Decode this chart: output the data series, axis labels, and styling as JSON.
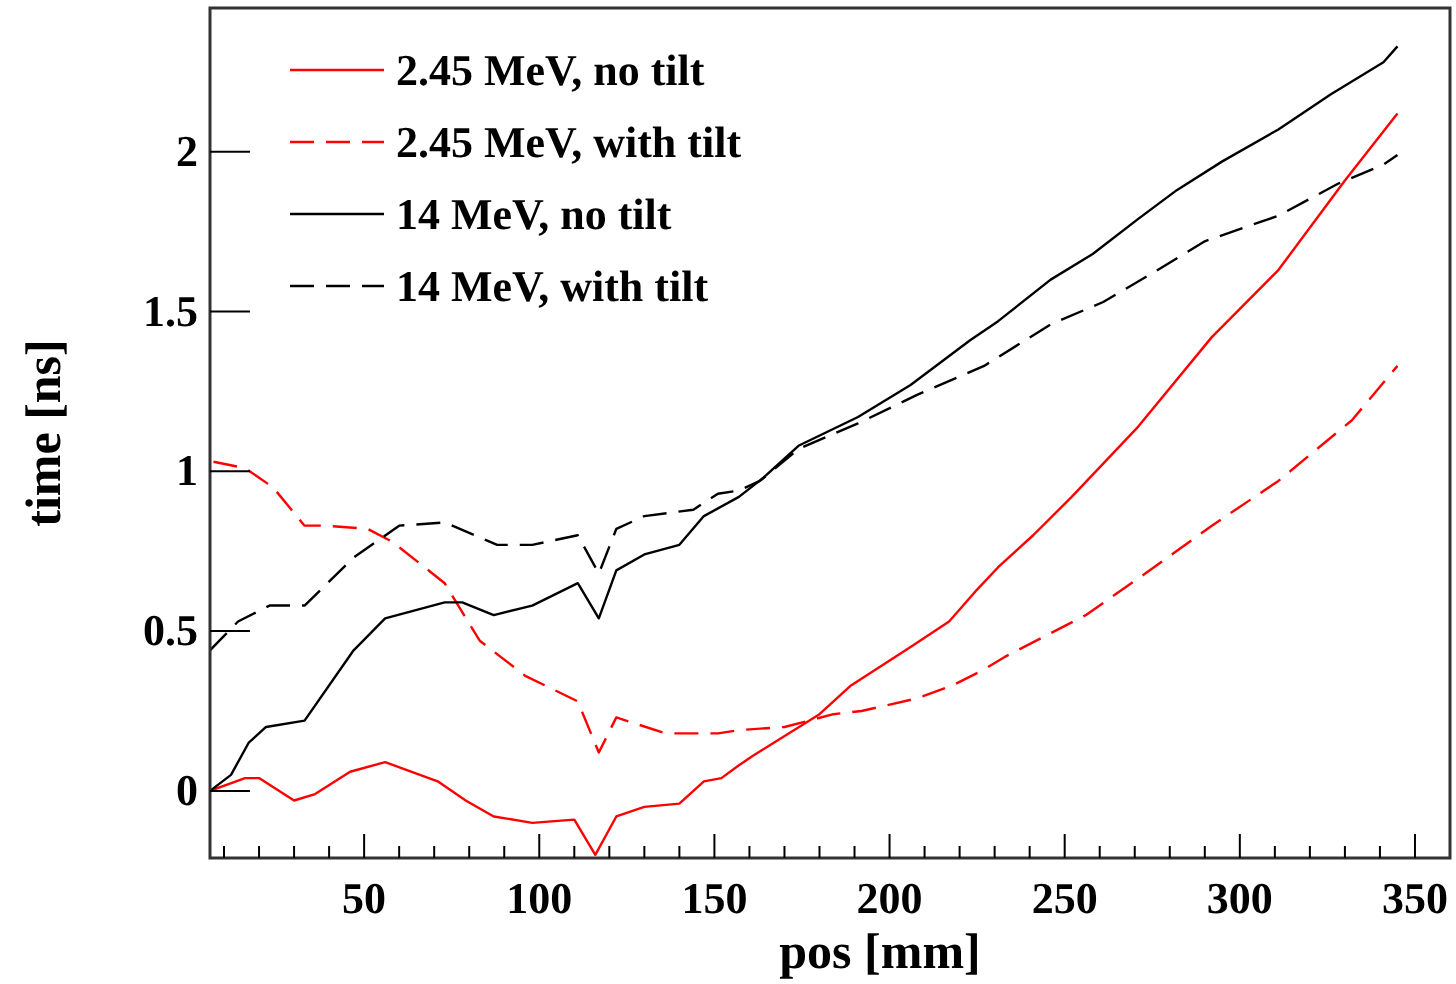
{
  "chart_data": {
    "type": "line",
    "xlabel": "pos [mm]",
    "ylabel": "time [ns]",
    "xlim": [
      6,
      360
    ],
    "ylim": [
      -0.21,
      2.45
    ],
    "xticks": [
      {
        "value": 10,
        "label": null
      },
      {
        "value": 20,
        "label": null
      },
      {
        "value": 30,
        "label": null
      },
      {
        "value": 40,
        "label": null
      },
      50,
      {
        "value": 60,
        "label": null
      },
      {
        "value": 70,
        "label": null
      },
      {
        "value": 80,
        "label": null
      },
      {
        "value": 90,
        "label": null
      },
      100,
      {
        "value": 110,
        "label": null
      },
      {
        "value": 120,
        "label": null
      },
      {
        "value": 130,
        "label": null
      },
      {
        "value": 140,
        "label": null
      },
      150,
      {
        "value": 160,
        "label": null
      },
      {
        "value": 170,
        "label": null
      },
      {
        "value": 180,
        "label": null
      },
      {
        "value": 190,
        "label": null
      },
      200,
      {
        "value": 210,
        "label": null
      },
      {
        "value": 220,
        "label": null
      },
      {
        "value": 230,
        "label": null
      },
      {
        "value": 240,
        "label": null
      },
      250,
      {
        "value": 260,
        "label": null
      },
      {
        "value": 270,
        "label": null
      },
      {
        "value": 280,
        "label": null
      },
      {
        "value": 290,
        "label": null
      },
      300,
      {
        "value": 310,
        "label": null
      },
      {
        "value": 320,
        "label": null
      },
      {
        "value": 330,
        "label": null
      },
      {
        "value": 340,
        "label": null
      },
      350
    ],
    "yticks": [
      0,
      0.5,
      1,
      1.5,
      2
    ],
    "grid": false,
    "legend": "top left",
    "marker": "none",
    "series": [
      {
        "name": "2.45 MeV, no tilt",
        "color": "#ff0000",
        "line_style": "solid",
        "x": [
          6,
          16,
          20,
          30,
          36,
          46,
          56,
          71,
          79,
          87,
          98,
          110,
          116,
          122,
          130,
          140,
          147,
          152,
          157,
          161,
          180,
          189,
          206,
          217,
          225,
          231,
          241,
          252,
          271,
          292,
          311,
          330,
          345
        ],
        "values": [
          0,
          0.04,
          0.04,
          -0.03,
          -0.01,
          0.06,
          0.09,
          0.03,
          -0.03,
          -0.08,
          -0.1,
          -0.09,
          -0.2,
          -0.08,
          -0.05,
          -0.04,
          0.03,
          0.04,
          0.08,
          0.11,
          0.24,
          0.33,
          0.45,
          0.53,
          0.63,
          0.7,
          0.8,
          0.92,
          1.14,
          1.42,
          1.63,
          1.91,
          2.12
        ]
      },
      {
        "name": "2.45 MeV, with tilt",
        "color": "#ff0000",
        "line_style": "dashed",
        "x": [
          7,
          16,
          24,
          33,
          39,
          51,
          58,
          73,
          83,
          96,
          111,
          117,
          122,
          136,
          144,
          151,
          157,
          170,
          184,
          192,
          208,
          218,
          227,
          233,
          256,
          273,
          292,
          311,
          332,
          345
        ],
        "values": [
          1.03,
          1.01,
          0.95,
          0.83,
          0.83,
          0.82,
          0.78,
          0.65,
          0.47,
          0.36,
          0.28,
          0.12,
          0.23,
          0.18,
          0.18,
          0.18,
          0.19,
          0.2,
          0.24,
          0.25,
          0.29,
          0.33,
          0.38,
          0.42,
          0.55,
          0.68,
          0.83,
          0.97,
          1.16,
          1.33
        ]
      },
      {
        "name": "14 MeV, no tilt",
        "color": "#000000",
        "line_style": "solid",
        "x": [
          6,
          12,
          17,
          22,
          33,
          47,
          56,
          73,
          78,
          87,
          98,
          111,
          117,
          122,
          130,
          140,
          147,
          157,
          164,
          174,
          191,
          206,
          223,
          231,
          246,
          258,
          271,
          282,
          295,
          311,
          326,
          341,
          345
        ],
        "values": [
          0,
          0.05,
          0.15,
          0.2,
          0.22,
          0.44,
          0.54,
          0.59,
          0.59,
          0.55,
          0.58,
          0.65,
          0.54,
          0.69,
          0.74,
          0.77,
          0.86,
          0.92,
          0.98,
          1.08,
          1.17,
          1.27,
          1.41,
          1.47,
          1.6,
          1.68,
          1.79,
          1.88,
          1.97,
          2.07,
          2.18,
          2.28,
          2.33
        ]
      },
      {
        "name": "14 MeV, with tilt",
        "color": "#000000",
        "line_style": "dashed",
        "x": [
          6,
          14,
          23,
          33,
          47,
          60,
          73,
          88,
          98,
          111,
          117,
          122,
          130,
          144,
          151,
          157,
          163,
          174,
          191,
          208,
          227,
          246,
          261,
          275,
          290,
          311,
          328,
          341,
          345
        ],
        "values": [
          0.44,
          0.53,
          0.58,
          0.58,
          0.73,
          0.83,
          0.84,
          0.77,
          0.77,
          0.8,
          0.68,
          0.82,
          0.86,
          0.88,
          0.93,
          0.94,
          0.97,
          1.07,
          1.15,
          1.24,
          1.33,
          1.46,
          1.53,
          1.62,
          1.72,
          1.8,
          1.9,
          1.96,
          1.99
        ]
      }
    ]
  }
}
